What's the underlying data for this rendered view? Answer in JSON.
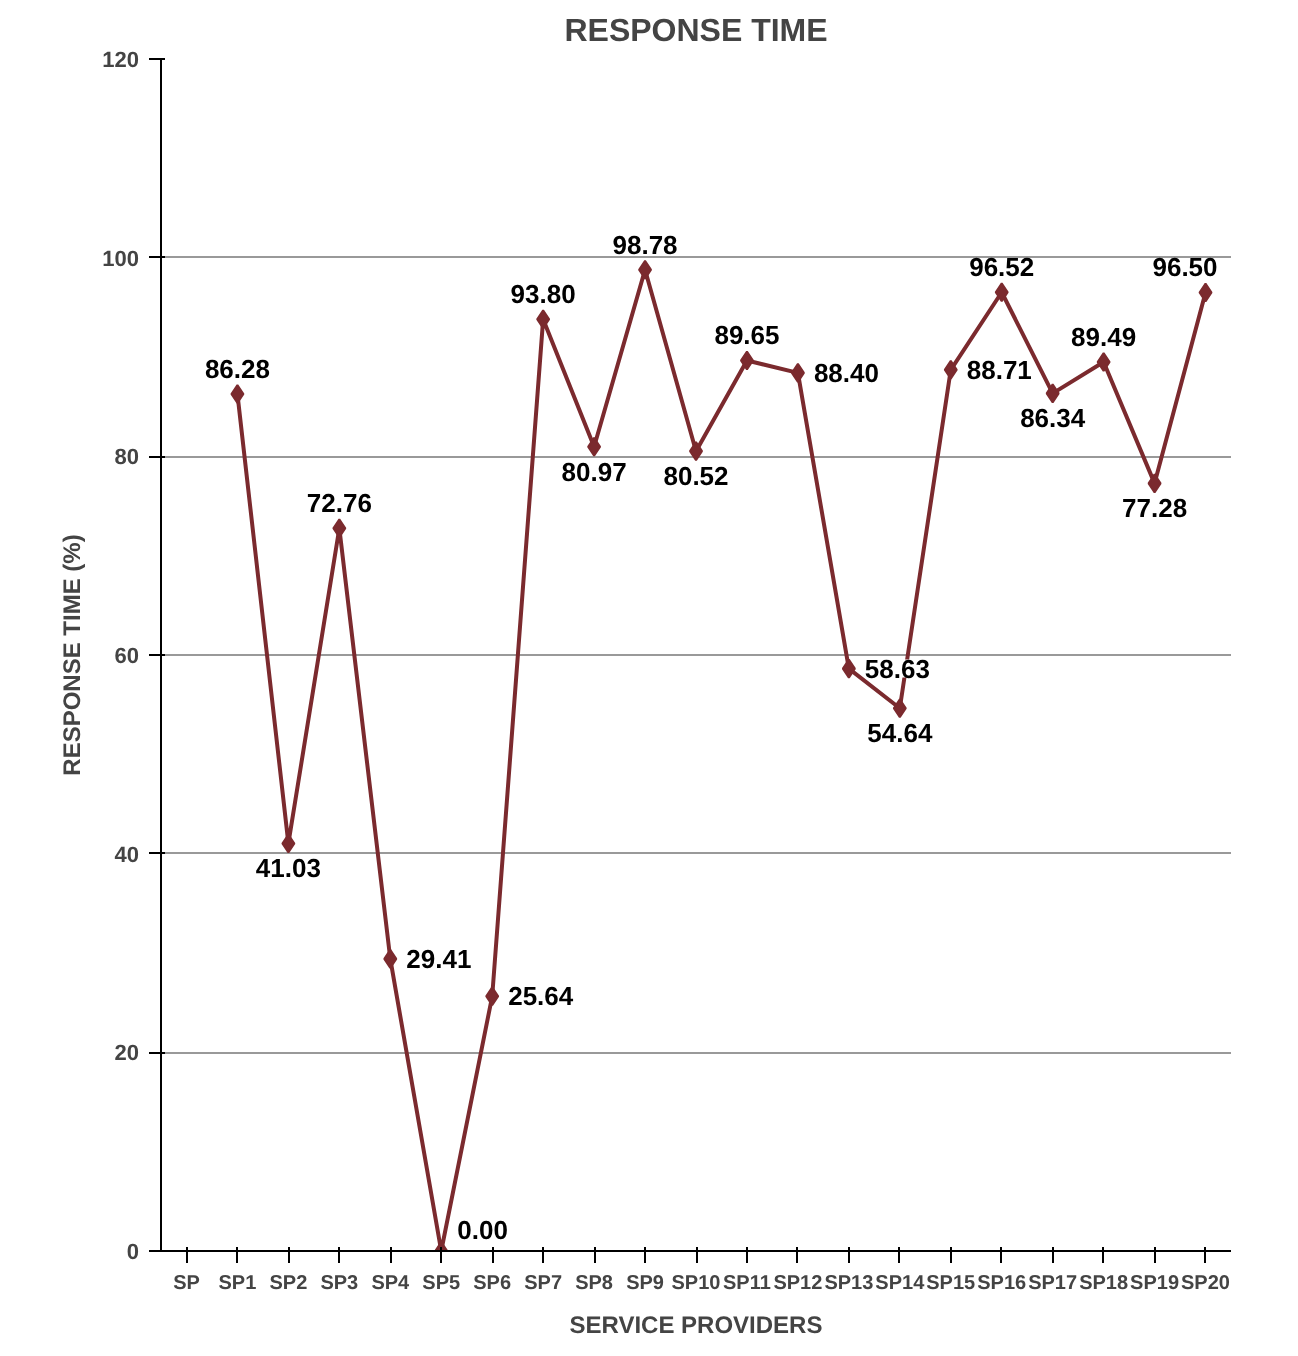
{
  "chart_data": {
    "type": "line",
    "title": "RESPONSE TIME",
    "xlabel": "SERVICE PROVIDERS",
    "ylabel": "RESPONSE TIME (%)",
    "categories": [
      "SP",
      "SP1",
      "SP2",
      "SP3",
      "SP4",
      "SP5",
      "SP6",
      "SP7",
      "SP8",
      "SP9",
      "SP10",
      "SP11",
      "SP12",
      "SP13",
      "SP14",
      "SP15",
      "SP16",
      "SP17",
      "SP18",
      "SP19",
      "SP20"
    ],
    "series": [
      {
        "color": "#7b2a2e",
        "values": [
          null,
          86.28,
          41.03,
          72.76,
          29.41,
          0.0,
          25.64,
          93.8,
          80.97,
          98.78,
          80.52,
          89.65,
          88.4,
          58.63,
          54.64,
          88.71,
          96.52,
          86.34,
          89.49,
          77.28,
          96.5
        ],
        "value_labels": [
          null,
          "86.28",
          "41.03",
          "72.76",
          "29.41",
          "0.00",
          "25.64",
          "93.80",
          "80.97",
          "98.78",
          "80.52",
          "89.65",
          "88.40",
          "58.63",
          "54.64",
          "88.71",
          "96.52",
          "86.34",
          "89.49",
          "77.28",
          "96.50"
        ]
      }
    ],
    "ylim": [
      0,
      120
    ],
    "yticks": [
      0,
      20,
      40,
      60,
      80,
      100,
      120
    ],
    "grid": "y",
    "marker": "diamond",
    "line_style": "solid"
  }
}
